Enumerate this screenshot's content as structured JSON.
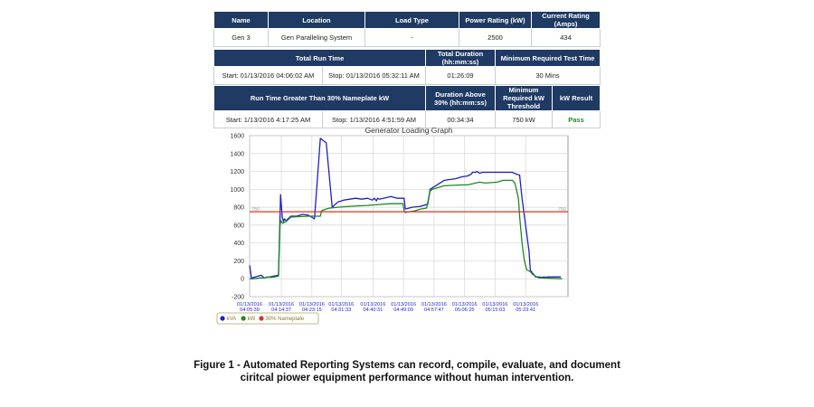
{
  "table1": {
    "headers": [
      "Name",
      "Location",
      "Load Type",
      "Power Rating (kW)",
      "Current Rating (Amps)"
    ],
    "row": [
      "Gen 3",
      "Gen Paralleling System",
      "-",
      "2500",
      "434"
    ]
  },
  "table2": {
    "headers": [
      "Total Run Time",
      "Total Duration (hh:mm:ss)",
      "Minimum Required Test Time"
    ],
    "row": [
      "Start: 01/13/2016 04:06:02 AM",
      "Stop: 01/13/2016 05:32:11 AM",
      "01:26:09",
      "30 Mins"
    ]
  },
  "table3": {
    "headers": [
      "Run Time Greater Than 30% Nameplate kW",
      "Duration Above 30% (hh:mm:ss)",
      "Minimum Required kW Threshold",
      "kW Result"
    ],
    "row": [
      "Start: 1/13/2016 4:17:25 AM",
      "Stop: 1/13/2016 4:51:59 AM",
      "00:34:34",
      "750 kW",
      "Pass"
    ]
  },
  "caption": {
    "line1": "Figure 1 - Automated Reporting Systems can record, compile, evaluate, and document",
    "line2": "ciritcal piower equipment performance without human intervention."
  },
  "colors": {
    "header_bg": "#1f3a63",
    "kva": "#1f1fc8",
    "kw": "#1e8a1e",
    "nameplate": "#e03020",
    "pass": "#1e8a1e"
  },
  "chart_data": {
    "type": "line",
    "title": "Generator Loading Graph",
    "ylim": [
      -200,
      1600
    ],
    "yticks": [
      -200,
      0,
      200,
      400,
      600,
      800,
      1000,
      1200,
      1400,
      1600
    ],
    "xlim": [
      0,
      5400
    ],
    "xticks": [
      {
        "date": "01/13/2016",
        "time": "04:05:39",
        "t": 0
      },
      {
        "date": "01/13/2016",
        "time": "04:14:37",
        "t": 538
      },
      {
        "date": "01/13/2016",
        "time": "04:23:15",
        "t": 1056
      },
      {
        "date": "01/13/2016",
        "time": "04:31:33",
        "t": 1554
      },
      {
        "date": "01/13/2016",
        "time": "04:40:31",
        "t": 2092
      },
      {
        "date": "01/13/2016",
        "time": "04:49:09",
        "t": 2610
      },
      {
        "date": "01/13/2016",
        "time": "04:57:47",
        "t": 3128
      },
      {
        "date": "01/13/2016",
        "time": "05:06:25",
        "t": 3646
      },
      {
        "date": "01/13/2016",
        "time": "05:15:03",
        "t": 4164
      },
      {
        "date": "01/13/2016",
        "time": "05:23:41",
        "t": 4682
      }
    ],
    "threshold_labels": [
      "750",
      "750"
    ],
    "legend": [
      "kVA",
      "kW",
      "30% Nameplate"
    ],
    "legend_position": "bottom-left",
    "series": [
      {
        "name": "kVA",
        "x": [
          0,
          30,
          40,
          200,
          230,
          245,
          260,
          290,
          320,
          340,
          490,
          515,
          525,
          545,
          555,
          575,
          590,
          620,
          700,
          800,
          900,
          1000,
          1100,
          1200,
          1300,
          1400,
          1500,
          1600,
          1700,
          1800,
          1900,
          2000,
          2080,
          2120,
          2150,
          2170,
          2200,
          2400,
          2500,
          2560,
          2620,
          2640,
          2700,
          2760,
          2900,
          3000,
          3020,
          3060,
          3300,
          3500,
          3600,
          3700,
          3760,
          3780,
          3800,
          3830,
          3860,
          3900,
          3950,
          4000,
          4100,
          4200,
          4300,
          4400,
          4460,
          4480,
          4500,
          4520,
          4580,
          4620,
          4700,
          4740,
          4760,
          4800,
          4820,
          4850,
          4900,
          4950,
          5000,
          5020,
          5060,
          5100,
          5120,
          5180,
          5220,
          5280
        ],
        "y": [
          150,
          10,
          10,
          40,
          20,
          10,
          10,
          20,
          15,
          20,
          40,
          700,
          940,
          770,
          680,
          640,
          670,
          650,
          700,
          700,
          720,
          710,
          670,
          1570,
          1520,
          800,
          860,
          880,
          890,
          900,
          890,
          900,
          880,
          900,
          870,
          900,
          890,
          920,
          900,
          900,
          900,
          780,
          790,
          800,
          810,
          830,
          830,
          1000,
          1100,
          1120,
          1140,
          1150,
          1170,
          1190,
          1190,
          1190,
          1200,
          1180,
          1190,
          1190,
          1190,
          1190,
          1190,
          1190,
          1190,
          1180,
          1180,
          1170,
          1160,
          900,
          500,
          300,
          100,
          60,
          50,
          20,
          20,
          15,
          20,
          15,
          20,
          20,
          20,
          20,
          20,
          20
        ]
      },
      {
        "name": "kW",
        "x": [
          0,
          60,
          200,
          250,
          290,
          320,
          360,
          420,
          490,
          515,
          530,
          560,
          620,
          700,
          1000,
          1200,
          1220,
          1300,
          1350,
          1500,
          1700,
          2000,
          2200,
          2400,
          2600,
          2620,
          2640,
          2700,
          2800,
          2900,
          3000,
          3060,
          3100,
          3300,
          3600,
          3700,
          3900,
          4000,
          4200,
          4300,
          4460,
          4500,
          4560,
          4580,
          4620,
          4660,
          4700,
          4760,
          4800,
          4850,
          4900,
          5300
        ],
        "y": [
          0,
          0,
          10,
          10,
          15,
          20,
          15,
          20,
          30,
          600,
          650,
          620,
          640,
          690,
          700,
          700,
          760,
          780,
          790,
          800,
          810,
          820,
          830,
          840,
          840,
          760,
          740,
          750,
          760,
          780,
          790,
          980,
          1000,
          1040,
          1050,
          1050,
          1080,
          1070,
          1080,
          1100,
          1100,
          1070,
          900,
          700,
          400,
          200,
          100,
          80,
          50,
          30,
          10,
          0
        ]
      },
      {
        "name": "30% Nameplate",
        "x": [
          0,
          5400
        ],
        "y": [
          750,
          750
        ]
      }
    ]
  }
}
